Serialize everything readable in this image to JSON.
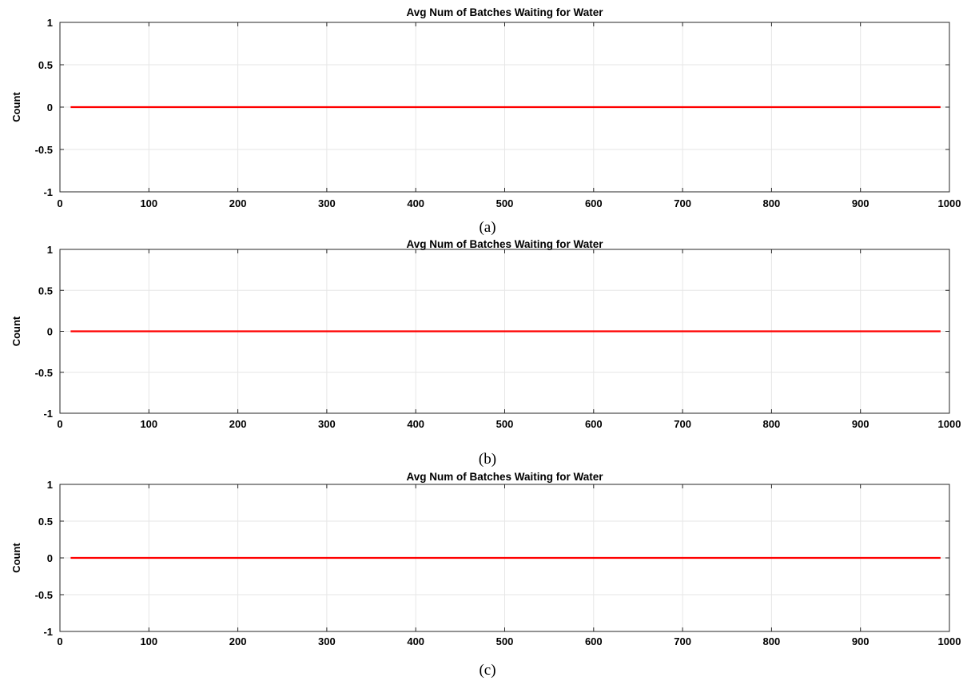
{
  "chart_data": [
    {
      "type": "line",
      "title": "Avg Num of Batches Waiting for Water",
      "ylabel": "Count",
      "xlabel": "",
      "caption": "(a)",
      "xlim": [
        0,
        1000
      ],
      "ylim": [
        -1,
        1
      ],
      "xticks": [
        "0",
        "100",
        "200",
        "300",
        "400",
        "500",
        "600",
        "700",
        "800",
        "900",
        "1000"
      ],
      "yticks": [
        "1",
        "0.5",
        "0",
        "-0.5",
        "-1"
      ],
      "grid": true,
      "series": [
        {
          "color": "#ff0000",
          "x": [
            12,
            990
          ],
          "y": [
            0,
            0
          ]
        }
      ]
    },
    {
      "type": "line",
      "title": "Avg Num of Batches Waiting for Water",
      "ylabel": "Count",
      "xlabel": "",
      "caption": "(b)",
      "xlim": [
        0,
        1000
      ],
      "ylim": [
        -1,
        1
      ],
      "xticks": [
        "0",
        "100",
        "200",
        "300",
        "400",
        "500",
        "600",
        "700",
        "800",
        "900",
        "1000"
      ],
      "yticks": [
        "1",
        "0.5",
        "0",
        "-0.5",
        "-1"
      ],
      "grid": true,
      "series": [
        {
          "color": "#ff0000",
          "x": [
            12,
            990
          ],
          "y": [
            0,
            0
          ]
        }
      ]
    },
    {
      "type": "line",
      "title": "Avg Num of Batches Waiting for Water",
      "ylabel": "Count",
      "xlabel": "",
      "caption": "(c)",
      "xlim": [
        0,
        1000
      ],
      "ylim": [
        -1,
        1
      ],
      "xticks": [
        "0",
        "100",
        "200",
        "300",
        "400",
        "500",
        "600",
        "700",
        "800",
        "900",
        "1000"
      ],
      "yticks": [
        "1",
        "0.5",
        "0",
        "-0.5",
        "-1"
      ],
      "grid": true,
      "series": [
        {
          "color": "#ff0000",
          "x": [
            12,
            990
          ],
          "y": [
            0,
            0
          ]
        }
      ]
    }
  ]
}
